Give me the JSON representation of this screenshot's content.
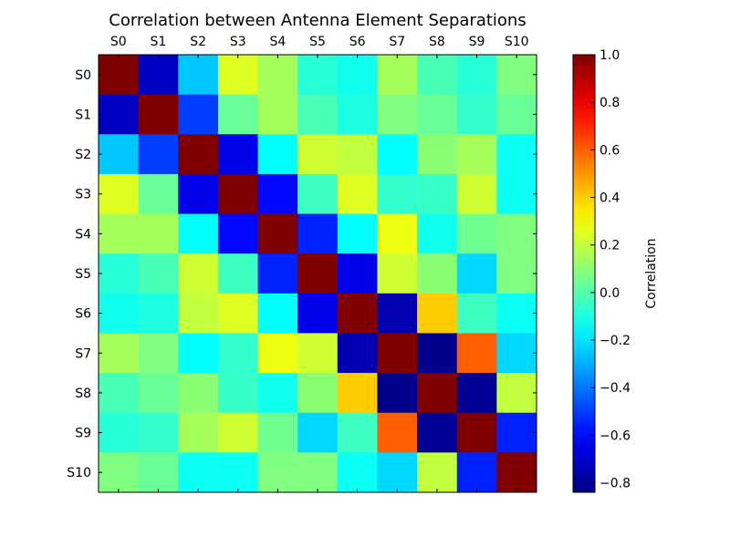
{
  "chart_data": {
    "type": "heatmap",
    "title": "Correlation between Antenna Element Separations",
    "x_labels": [
      "S0",
      "S1",
      "S2",
      "S3",
      "S4",
      "S5",
      "S6",
      "S7",
      "S8",
      "S9",
      "S10"
    ],
    "y_labels": [
      "S0",
      "S1",
      "S2",
      "S3",
      "S4",
      "S5",
      "S6",
      "S7",
      "S8",
      "S9",
      "S10"
    ],
    "values": [
      [
        1.0,
        -0.72,
        -0.25,
        0.25,
        0.15,
        -0.08,
        -0.12,
        0.15,
        -0.02,
        -0.08,
        0.08
      ],
      [
        -0.72,
        1.0,
        -0.5,
        0.04,
        0.15,
        -0.02,
        -0.1,
        0.08,
        0.04,
        -0.06,
        0.04
      ],
      [
        -0.25,
        -0.5,
        1.0,
        -0.65,
        -0.15,
        0.22,
        0.2,
        -0.15,
        0.1,
        0.15,
        -0.13
      ],
      [
        0.25,
        0.04,
        -0.65,
        1.0,
        -0.6,
        -0.04,
        0.25,
        -0.06,
        -0.05,
        0.22,
        -0.13
      ],
      [
        0.15,
        0.15,
        -0.15,
        -0.6,
        1.0,
        -0.55,
        -0.15,
        0.28,
        -0.12,
        0.05,
        0.08
      ],
      [
        -0.08,
        -0.02,
        0.22,
        -0.04,
        -0.55,
        1.0,
        -0.65,
        0.22,
        0.1,
        -0.22,
        0.08
      ],
      [
        -0.12,
        -0.1,
        0.2,
        0.25,
        -0.15,
        -0.65,
        1.0,
        -0.75,
        0.4,
        -0.04,
        -0.13
      ],
      [
        0.15,
        0.08,
        -0.15,
        -0.06,
        0.28,
        0.22,
        -0.75,
        1.0,
        -0.82,
        0.6,
        -0.22
      ],
      [
        -0.02,
        0.04,
        0.1,
        -0.05,
        -0.12,
        0.1,
        0.4,
        -0.82,
        1.0,
        -0.8,
        0.2
      ],
      [
        -0.08,
        -0.06,
        0.15,
        0.22,
        0.05,
        -0.22,
        -0.04,
        0.6,
        -0.8,
        1.0,
        -0.55
      ],
      [
        0.08,
        0.04,
        -0.13,
        -0.13,
        0.08,
        0.08,
        -0.13,
        -0.22,
        0.2,
        -0.55,
        1.0
      ]
    ],
    "colormap": "jet",
    "colorbar": {
      "label": "Correlation",
      "range": [
        -0.84,
        1.0
      ],
      "ticks": [
        -0.8,
        -0.6,
        -0.4,
        -0.2,
        0.0,
        0.2,
        0.4,
        0.6,
        0.8,
        1.0
      ],
      "tick_labels": [
        "−0.8",
        "−0.6",
        "−0.4",
        "−0.2",
        "0.0",
        "0.2",
        "0.4",
        "0.6",
        "0.8",
        "1.0"
      ],
      "position": "right"
    },
    "x_axis_position": "top",
    "grid": false
  }
}
